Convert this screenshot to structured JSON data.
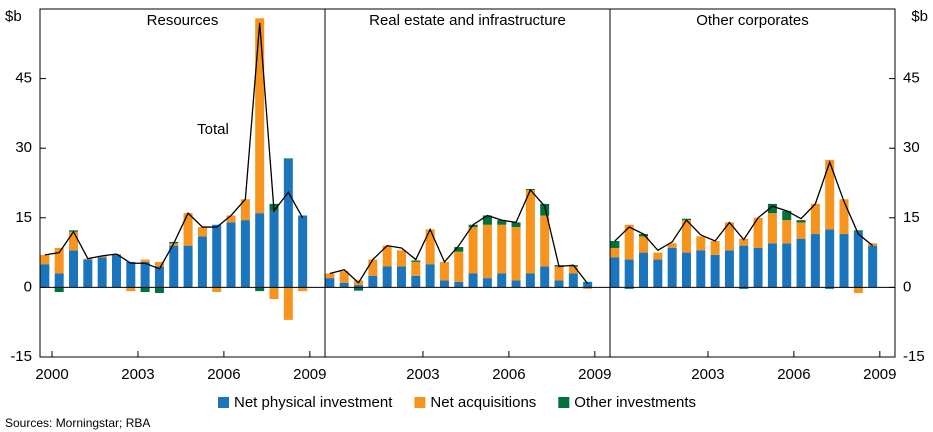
{
  "chart_data": {
    "type": "bar",
    "stacked": true,
    "y_label": "$b",
    "ylim": [
      -15,
      60
    ],
    "yticks": [
      -15,
      0,
      15,
      30,
      45
    ],
    "xlim": [
      1999.58,
      2009.53
    ],
    "x": [
      1999.75,
      2000.25,
      2000.75,
      2001.25,
      2001.75,
      2002.25,
      2002.75,
      2003.25,
      2003.75,
      2004.25,
      2004.75,
      2005.25,
      2005.75,
      2006.25,
      2006.75,
      2007.25,
      2007.75,
      2008.25,
      2008.75
    ],
    "legend": [
      {
        "name": "Net physical investment",
        "color": "#1a75bc"
      },
      {
        "name": "Net acquisitions",
        "color": "#f7941d"
      },
      {
        "name": "Other investments",
        "color": "#00703c"
      }
    ],
    "line_color": "#000000",
    "panels": [
      {
        "title": "Resources",
        "xticks": [
          2000,
          2003,
          2006,
          2009
        ],
        "annotation": "Total",
        "series": [
          {
            "values": [
              5,
              3,
              8,
              6,
              6.5,
              7,
              5.5,
              5.5,
              4.5,
              9,
              9,
              11,
              13.5,
              14,
              14.5,
              16,
              16.5,
              27.5,
              15.5
            ]
          },
          {
            "values": [
              2,
              5.5,
              4,
              0.2,
              0.3,
              0.2,
              -0.8,
              0.5,
              1,
              0.5,
              7,
              2,
              -1,
              1.5,
              4.5,
              42,
              -2.5,
              -7,
              -0.8
            ]
          },
          {
            "values": [
              0,
              -1,
              0.3,
              0,
              0,
              0,
              0,
              -1,
              -1.2,
              0.3,
              0,
              0,
              0,
              0,
              0,
              -0.8,
              1.5,
              0.3,
              0
            ]
          }
        ],
        "total": [
          7,
          7.5,
          12,
          6.2,
          6.8,
          7.2,
          5.2,
          5.2,
          4,
          9.5,
          16,
          13,
          13,
          15.5,
          19,
          57,
          16.5,
          20.5,
          15
        ]
      },
      {
        "title": "Real estate and infrastructure",
        "xticks": [
          2003,
          2006,
          2009
        ],
        "series": [
          {
            "values": [
              2,
              1,
              0.5,
              2.5,
              4.5,
              4.5,
              2.5,
              5,
              1.5,
              1.2,
              3,
              2,
              3,
              1.5,
              3,
              4.5,
              1.5,
              3,
              1.2
            ]
          },
          {
            "values": [
              1,
              2.5,
              1,
              3.5,
              4.5,
              3.5,
              3,
              7.5,
              4,
              6.5,
              10,
              11.5,
              10.5,
              11.5,
              18,
              11,
              3,
              1.5,
              -0.3
            ]
          },
          {
            "values": [
              0,
              0,
              -0.7,
              0,
              0,
              0,
              0.3,
              0,
              0,
              1,
              0.5,
              2,
              1,
              1,
              0.2,
              2.5,
              0.3,
              0.3,
              0
            ]
          }
        ],
        "total": [
          3,
          3.8,
          1,
          6,
          9,
          8.5,
          6,
          12.5,
          5.5,
          9,
          13.5,
          15.5,
          14.5,
          14,
          21,
          17.5,
          4.5,
          4.8,
          0.8
        ]
      },
      {
        "title": "Other corporates",
        "xticks": [
          2003,
          2006,
          2009
        ],
        "series": [
          {
            "values": [
              6.5,
              6,
              7.5,
              6,
              8.5,
              7.5,
              8,
              7,
              8,
              9,
              8.5,
              9.5,
              9.5,
              10.5,
              11.5,
              12.5,
              11.5,
              12,
              9
            ]
          },
          {
            "values": [
              2,
              7.5,
              3.5,
              1.5,
              1,
              7,
              3,
              3,
              6,
              1.5,
              6.5,
              6.5,
              5,
              3.5,
              6.5,
              15,
              7.5,
              -1.2,
              0.5
            ]
          },
          {
            "values": [
              1.5,
              -0.3,
              0.5,
              0,
              0,
              0.3,
              0,
              0,
              0,
              -0.3,
              0,
              2,
              2,
              0.5,
              0,
              -0.3,
              0,
              0.3,
              0
            ]
          }
        ],
        "total": [
          10,
          13,
          11.5,
          8,
          9.8,
          14.5,
          11.3,
          10,
          14,
          10.3,
          15,
          17.5,
          16.5,
          14.8,
          18,
          27,
          18.5,
          11.5,
          9
        ]
      }
    ]
  },
  "source": "Sources: Morningstar; RBA"
}
